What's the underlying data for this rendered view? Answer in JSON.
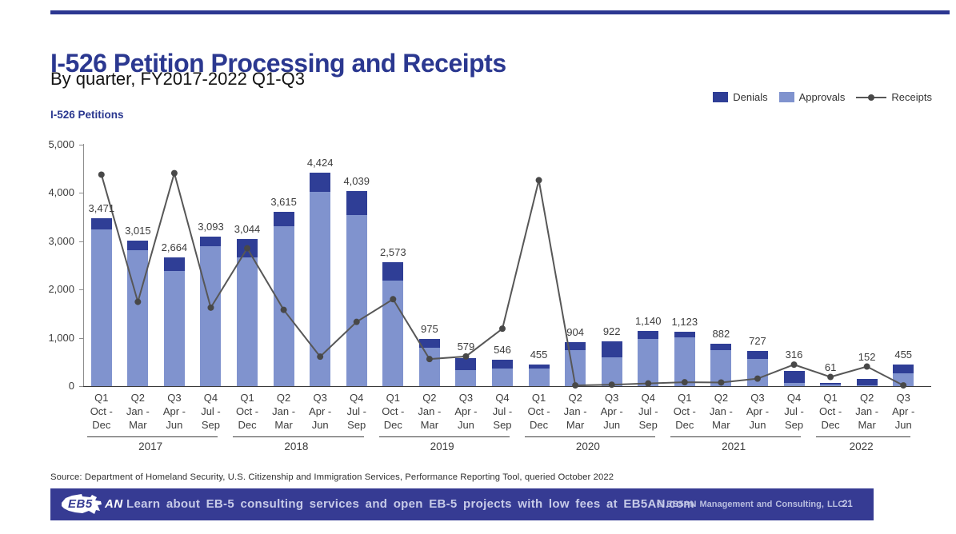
{
  "page": {
    "title": "I-526 Petition Processing and Receipts",
    "subtitle": "By quarter, FY2017-2022 Q1-Q3",
    "source": "Source: Department of Homeland Security, U.S. Citizenship and Immigration Services, Performance Reporting Tool, queried October 2022"
  },
  "legend": [
    {
      "label": "Denials",
      "color": "#2F3E96",
      "marker": "box"
    },
    {
      "label": "Approvals",
      "color": "#8093CE",
      "marker": "box"
    },
    {
      "label": "Receipts",
      "color": "#575757",
      "marker": "line-dot"
    }
  ],
  "footer": {
    "logo_text_eb5": "EB5",
    "logo_text_an": "AN",
    "message": "Learn about EB-5 consulting services and open EB-5 projects with low fees at EB5AN.com",
    "copyright": "© EB5AN Management and Consulting, LLC",
    "page_number": "21"
  },
  "chart_data": {
    "type": "bar",
    "subtype": "stacked-bars-with-line-overlay",
    "title": "I-526 Petitions",
    "ylabel": "I-526 Petitions",
    "xlabel": "",
    "ylim": [
      0,
      5000
    ],
    "yticks": [
      0,
      1000,
      2000,
      3000,
      4000,
      5000
    ],
    "grid": false,
    "legend_position": "top-right",
    "categories": [
      {
        "q": "Q1",
        "m1": "Oct -",
        "m2": "Dec",
        "year": "2017"
      },
      {
        "q": "Q2",
        "m1": "Jan -",
        "m2": "Mar",
        "year": "2017"
      },
      {
        "q": "Q3",
        "m1": "Apr -",
        "m2": "Jun",
        "year": "2017"
      },
      {
        "q": "Q4",
        "m1": "Jul -",
        "m2": "Sep",
        "year": "2017"
      },
      {
        "q": "Q1",
        "m1": "Oct -",
        "m2": "Dec",
        "year": "2018"
      },
      {
        "q": "Q2",
        "m1": "Jan -",
        "m2": "Mar",
        "year": "2018"
      },
      {
        "q": "Q3",
        "m1": "Apr -",
        "m2": "Jun",
        "year": "2018"
      },
      {
        "q": "Q4",
        "m1": "Jul -",
        "m2": "Sep",
        "year": "2018"
      },
      {
        "q": "Q1",
        "m1": "Oct -",
        "m2": "Dec",
        "year": "2019"
      },
      {
        "q": "Q2",
        "m1": "Jan -",
        "m2": "Mar",
        "year": "2019"
      },
      {
        "q": "Q3",
        "m1": "Apr -",
        "m2": "Jun",
        "year": "2019"
      },
      {
        "q": "Q4",
        "m1": "Jul -",
        "m2": "Sep",
        "year": "2019"
      },
      {
        "q": "Q1",
        "m1": "Oct -",
        "m2": "Dec",
        "year": "2020"
      },
      {
        "q": "Q2",
        "m1": "Jan -",
        "m2": "Mar",
        "year": "2020"
      },
      {
        "q": "Q3",
        "m1": "Apr -",
        "m2": "Jun",
        "year": "2020"
      },
      {
        "q": "Q4",
        "m1": "Jul -",
        "m2": "Sep",
        "year": "2020"
      },
      {
        "q": "Q1",
        "m1": "Oct -",
        "m2": "Dec",
        "year": "2021"
      },
      {
        "q": "Q2",
        "m1": "Jan -",
        "m2": "Mar",
        "year": "2021"
      },
      {
        "q": "Q3",
        "m1": "Apr -",
        "m2": "Jun",
        "year": "2021"
      },
      {
        "q": "Q4",
        "m1": "Jul -",
        "m2": "Sep",
        "year": "2021"
      },
      {
        "q": "Q1",
        "m1": "Oct -",
        "m2": "Dec",
        "year": "2022"
      },
      {
        "q": "Q2",
        "m1": "Jan -",
        "m2": "Mar",
        "year": "2022"
      },
      {
        "q": "Q3",
        "m1": "Apr -",
        "m2": "Jun",
        "year": "2022"
      }
    ],
    "year_groups": [
      {
        "label": "2017",
        "count": 4
      },
      {
        "label": "2018",
        "count": 4
      },
      {
        "label": "2019",
        "count": 4
      },
      {
        "label": "2020",
        "count": 4
      },
      {
        "label": "2021",
        "count": 4
      },
      {
        "label": "2022",
        "count": 3
      }
    ],
    "totals": [
      3471,
      3015,
      2664,
      3093,
      3044,
      3615,
      4424,
      4039,
      2573,
      975,
      579,
      546,
      455,
      904,
      922,
      1140,
      1123,
      882,
      727,
      316,
      61,
      152,
      455
    ],
    "series": [
      {
        "name": "Approvals",
        "type": "bar",
        "color": "#8093CE",
        "values": [
          3250,
          2820,
          2385,
          2900,
          2660,
          3310,
          4030,
          3540,
          2185,
          800,
          330,
          368,
          372,
          740,
          590,
          970,
          1012,
          742,
          562,
          70,
          25,
          15,
          260
        ]
      },
      {
        "name": "Denials",
        "type": "bar",
        "color": "#2F3E96",
        "values": [
          221,
          195,
          279,
          193,
          384,
          305,
          394,
          499,
          388,
          175,
          249,
          178,
          83,
          164,
          332,
          170,
          111,
          140,
          165,
          246,
          36,
          137,
          195
        ]
      },
      {
        "name": "Receipts",
        "type": "line",
        "color": "#575757",
        "marker_color": "#484848",
        "values": [
          4380,
          1745,
          4410,
          1625,
          2855,
          1580,
          610,
          1330,
          1800,
          560,
          615,
          1190,
          4265,
          15,
          30,
          55,
          80,
          75,
          155,
          445,
          190,
          405,
          15
        ]
      }
    ]
  }
}
